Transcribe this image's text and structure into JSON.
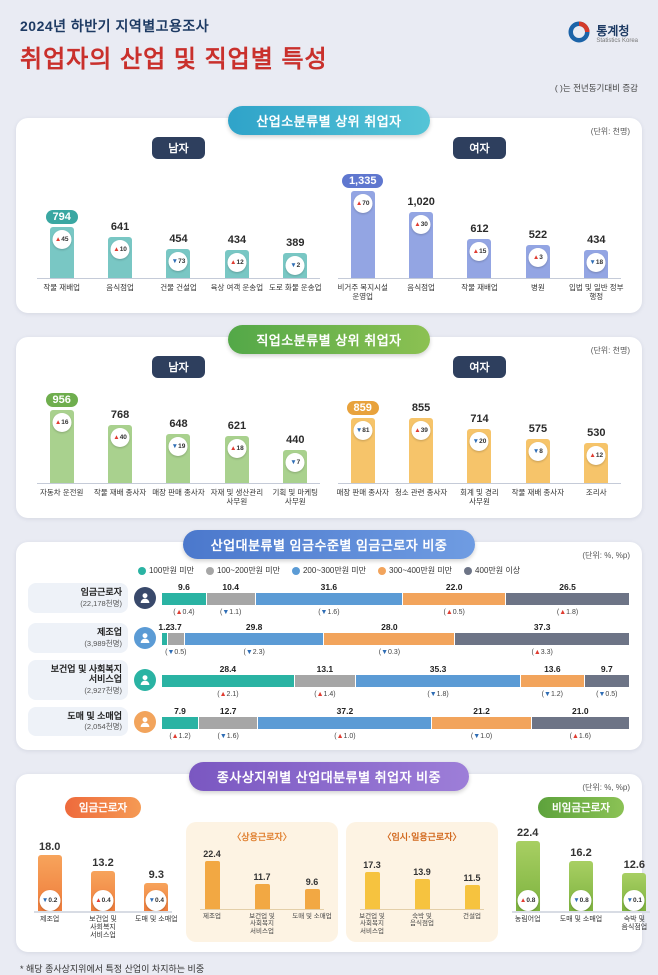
{
  "page": {
    "title_line1": "2024년 하반기 지역별고용조사",
    "title_line2": "취업자의 산업 및 직업별 특성",
    "note": "( )는 전년동기대비 증감",
    "footnote": "* 해당 종사상지위에서 특정 산업이 차지하는 비중",
    "logo": {
      "name": "통계청",
      "sub": "Statistics Korea"
    },
    "colors": {
      "title_navy": "#1d3a63",
      "title_red": "#c9302c",
      "background": "#e9ebf3"
    }
  },
  "sections": {
    "s1": {
      "title": "산업소분류별 상위 취업자",
      "unit": "(단위: 천명)",
      "male_label": "남자",
      "female_label": "여자"
    },
    "s2": {
      "title": "직업소분류별 상위 취업자",
      "unit": "(단위: 천명)",
      "male_label": "남자",
      "female_label": "여자"
    },
    "s3": {
      "title": "산업대분류별 임금수준별 임금근로자 비중",
      "unit": "(단위: %, %p)"
    },
    "s4": {
      "title": "종사상지위별 산업대분류별 취업자 비중",
      "unit": "(단위: %, %p)",
      "wage_label": "임금근로자",
      "nonwage_label": "비임금근로자",
      "regular_title": "〈상용근로자〉",
      "temp_title": "〈임시·일용근로자〉"
    }
  },
  "chart_data": [
    {
      "id": "s1-male",
      "type": "bar",
      "group": "남자",
      "unit": "천명",
      "categories": [
        "작물 재배업",
        "음식점업",
        "건물 건설업",
        "육상 여객 운송업",
        "도로 화물 운송업"
      ],
      "values": [
        794,
        641,
        454,
        434,
        389
      ],
      "changes": [
        "▲45",
        "▲10",
        "▼73",
        "▲12",
        "▼2"
      ],
      "color": "#79c7c4",
      "highlight_color": "#3aa7a2"
    },
    {
      "id": "s1-female",
      "type": "bar",
      "group": "여자",
      "unit": "천명",
      "categories": [
        "비거주 복지시설 운영업",
        "음식점업",
        "작물 재배업",
        "병원",
        "입법 및 일반 정부 행정"
      ],
      "values": [
        1335,
        1020,
        612,
        522,
        434
      ],
      "changes": [
        "▲70",
        "▲30",
        "▲15",
        "▲3",
        "▼18"
      ],
      "color": "#93a5e3",
      "highlight_color": "#5f77cf"
    },
    {
      "id": "s2-male",
      "type": "bar",
      "group": "남자",
      "unit": "천명",
      "categories": [
        "자동차 운전원",
        "작물 재배 종사자",
        "매장 판매 종사자",
        "자재 및 생산관리 사무원",
        "기획 및 마케팅 사무원"
      ],
      "values": [
        956,
        768,
        648,
        621,
        440
      ],
      "changes": [
        "▲16",
        "▲40",
        "▼19",
        "▲18",
        "▼7"
      ],
      "color": "#a9d18e",
      "highlight_color": "#6fae4e"
    },
    {
      "id": "s2-female",
      "type": "bar",
      "group": "여자",
      "unit": "천명",
      "categories": [
        "매장 판매 종사자",
        "청소 관련 종사자",
        "회계 및 경리 사무원",
        "작물 재배 종사자",
        "조리사"
      ],
      "values": [
        859,
        855,
        714,
        575,
        530
      ],
      "changes": [
        "▼81",
        "▲39",
        "▼20",
        "▼8",
        "▲12"
      ],
      "color": "#f6c46a",
      "highlight_color": "#e8a23c"
    },
    {
      "id": "s3-stack",
      "type": "stacked-bar",
      "unit": "%, %p",
      "legend": [
        "100만원 미만",
        "100~200만원 미만",
        "200~300만원 미만",
        "300~400만원 미만",
        "400만원 이상"
      ],
      "colors": [
        "#2ab3a3",
        "#a6a6a6",
        "#5b9bd5",
        "#f2a45c",
        "#6d7486"
      ],
      "row_icon_colors": [
        "#39496b",
        "#5b9bd5",
        "#2ab3a3",
        "#f2a45c"
      ],
      "rows": [
        {
          "label": "임금근로자",
          "sub": "(22,178천명)",
          "values": [
            9.6,
            10.4,
            31.6,
            22.0,
            26.5
          ],
          "changes": [
            "▲0.4",
            "▼1.1",
            "▼1.6",
            "▲0.5",
            "▲1.8"
          ]
        },
        {
          "label": "제조업",
          "sub": "(3,989천명)",
          "values": [
            1.2,
            3.7,
            29.8,
            28.0,
            37.3
          ],
          "changes": [
            "▼0.2",
            "▼0.5",
            "▼2.3",
            "▼0.3",
            "▲3.3"
          ]
        },
        {
          "label": "보건업 및 사회복지 서비스업",
          "sub": "(2,927천명)",
          "values": [
            28.4,
            13.1,
            35.3,
            13.6,
            9.7
          ],
          "changes": [
            "▲2.1",
            "▲1.4",
            "▼1.8",
            "▼1.2",
            "▼0.5"
          ]
        },
        {
          "label": "도매 및 소매업",
          "sub": "(2,054천명)",
          "values": [
            7.9,
            12.7,
            37.2,
            21.2,
            21.0
          ],
          "changes": [
            "▲1.2",
            "▼1.6",
            "▲1.0",
            "▼1.0",
            "▲1.6"
          ]
        }
      ]
    },
    {
      "id": "s4-wage",
      "type": "bar",
      "group": "임금근로자",
      "unit": "%, %p",
      "categories": [
        "제조업",
        "보건업 및 사회복지 서비스업",
        "도매 및 소매업"
      ],
      "values": [
        18.0,
        13.2,
        9.3
      ],
      "changes": [
        "▼0.2",
        "▲0.4",
        "▼0.4"
      ],
      "style": "orange"
    },
    {
      "id": "s4-regular",
      "type": "bar",
      "group": "상용근로자",
      "unit": "%",
      "categories": [
        "제조업",
        "보건업 및 사회복지 서비스업",
        "도매 및 소매업"
      ],
      "values": [
        22.4,
        11.7,
        9.6
      ],
      "style": "regular"
    },
    {
      "id": "s4-temp",
      "type": "bar",
      "group": "임시·일용근로자",
      "unit": "%",
      "categories": [
        "보건업 및 사회복지 서비스업",
        "숙박 및 음식점업",
        "건설업"
      ],
      "values": [
        17.3,
        13.9,
        11.5
      ],
      "style": "temp"
    },
    {
      "id": "s4-nonwage",
      "type": "bar",
      "group": "비임금근로자",
      "unit": "%, %p",
      "categories": [
        "농림어업",
        "도매 및 소매업",
        "숙박 및 음식점업"
      ],
      "values": [
        22.4,
        16.2,
        12.6
      ],
      "changes": [
        "▲0.8",
        "▼0.8",
        "▼0.1"
      ],
      "style": "green"
    }
  ]
}
